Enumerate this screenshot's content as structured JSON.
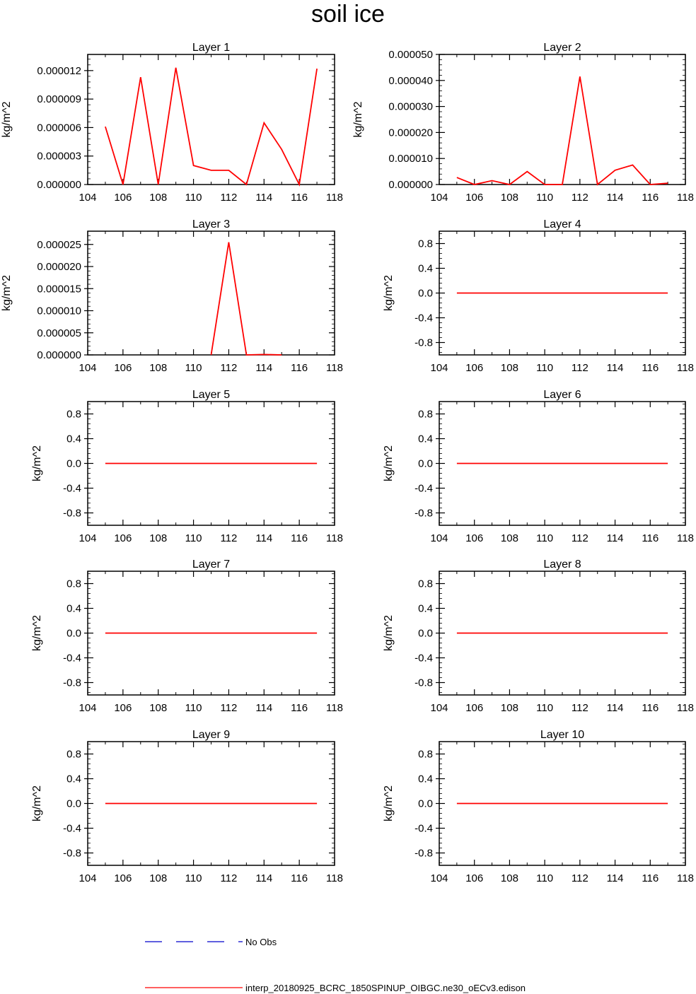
{
  "title": "soil ice",
  "colors": {
    "model_line": "#ff0000",
    "obs_line": "#0000cc",
    "frame": "#000000"
  },
  "legend": [
    {
      "label": "No Obs",
      "style": "dashed",
      "color": "#0000cc"
    },
    {
      "label": "interp_20180925_BCRC_1850SPINUP_OIBGC.ne30_oECv3.edison",
      "style": "solid",
      "color": "#ff0000"
    }
  ],
  "chart_data": [
    {
      "type": "line",
      "title": "Layer 1",
      "ylabel": "kg/m^2",
      "xlim": [
        104,
        118
      ],
      "ylim": [
        0,
        1.37e-05
      ],
      "xticks": [
        104,
        106,
        108,
        110,
        112,
        114,
        116,
        118
      ],
      "xtick_labels": [
        "104",
        "106",
        "108",
        "110",
        "112",
        "114",
        "116",
        "118"
      ],
      "yticks": [
        0,
        3e-06,
        6e-06,
        9e-06,
        1.2e-05
      ],
      "ytick_labels": [
        "0.000000",
        "0.000003",
        "0.000006",
        "0.000009",
        "0.000012"
      ],
      "series": [
        {
          "x": [
            105,
            106,
            107,
            108,
            109,
            110,
            111,
            112,
            113,
            114,
            115,
            116,
            117
          ],
          "values": [
            6.1e-06,
            0,
            1.13e-05,
            0,
            1.23e-05,
            2e-06,
            1.5e-06,
            1.5e-06,
            0,
            6.5e-06,
            3.7e-06,
            0,
            1.22e-05
          ]
        }
      ]
    },
    {
      "type": "line",
      "title": "Layer 2",
      "ylabel": "kg/m^2",
      "xlim": [
        104,
        118
      ],
      "ylim": [
        0,
        5e-05
      ],
      "xticks": [
        104,
        106,
        108,
        110,
        112,
        114,
        116,
        118
      ],
      "xtick_labels": [
        "104",
        "106",
        "108",
        "110",
        "112",
        "114",
        "116",
        "118"
      ],
      "yticks": [
        0,
        1e-05,
        2e-05,
        3e-05,
        4e-05,
        5e-05
      ],
      "ytick_labels": [
        "0.000000",
        "0.000010",
        "0.000020",
        "0.000030",
        "0.000040",
        "0.000050"
      ],
      "series": [
        {
          "x": [
            105,
            106,
            107,
            108,
            109,
            110,
            111,
            112,
            113,
            114,
            115,
            116,
            117
          ],
          "values": [
            2.7e-06,
            0,
            1.5e-06,
            0,
            5e-06,
            0,
            0,
            4.15e-05,
            0,
            5.5e-06,
            7.5e-06,
            0,
            5e-07
          ]
        }
      ]
    },
    {
      "type": "line",
      "title": "Layer 3",
      "ylabel": "kg/m^2",
      "xlim": [
        104,
        118
      ],
      "ylim": [
        0,
        2.8e-05
      ],
      "xticks": [
        104,
        106,
        108,
        110,
        112,
        114,
        116,
        118
      ],
      "xtick_labels": [
        "104",
        "106",
        "108",
        "110",
        "112",
        "114",
        "116",
        "118"
      ],
      "yticks": [
        0,
        5e-06,
        1e-05,
        1.5e-05,
        2e-05,
        2.5e-05
      ],
      "ytick_labels": [
        "0.000000",
        "0.000005",
        "0.000010",
        "0.000015",
        "0.000020",
        "0.000025"
      ],
      "series": [
        {
          "x": [
            111,
            112,
            113,
            114,
            115
          ],
          "values": [
            0,
            2.55e-05,
            0,
            1e-07,
            0
          ]
        }
      ]
    },
    {
      "type": "line",
      "title": "Layer 4",
      "ylabel": "kg/m^2",
      "xlim": [
        104,
        118
      ],
      "ylim": [
        -1,
        1
      ],
      "xticks": [
        104,
        106,
        108,
        110,
        112,
        114,
        116,
        118
      ],
      "xtick_labels": [
        "104",
        "106",
        "108",
        "110",
        "112",
        "114",
        "116",
        "118"
      ],
      "yticks": [
        -0.8,
        -0.4,
        0,
        0.4,
        0.8
      ],
      "ytick_labels": [
        "-0.8",
        "-0.4",
        "0.0",
        "0.4",
        "0.8"
      ],
      "series": [
        {
          "x": [
            105,
            117
          ],
          "values": [
            0,
            0
          ]
        }
      ]
    },
    {
      "type": "line",
      "title": "Layer 5",
      "ylabel": "kg/m^2",
      "xlim": [
        104,
        118
      ],
      "ylim": [
        -1,
        1
      ],
      "xticks": [
        104,
        106,
        108,
        110,
        112,
        114,
        116,
        118
      ],
      "xtick_labels": [
        "104",
        "106",
        "108",
        "110",
        "112",
        "114",
        "116",
        "118"
      ],
      "yticks": [
        -0.8,
        -0.4,
        0,
        0.4,
        0.8
      ],
      "ytick_labels": [
        "-0.8",
        "-0.4",
        "0.0",
        "0.4",
        "0.8"
      ],
      "series": [
        {
          "x": [
            105,
            117
          ],
          "values": [
            0,
            0
          ]
        }
      ]
    },
    {
      "type": "line",
      "title": "Layer 6",
      "ylabel": "kg/m^2",
      "xlim": [
        104,
        118
      ],
      "ylim": [
        -1,
        1
      ],
      "xticks": [
        104,
        106,
        108,
        110,
        112,
        114,
        116,
        118
      ],
      "xtick_labels": [
        "104",
        "106",
        "108",
        "110",
        "112",
        "114",
        "116",
        "118"
      ],
      "yticks": [
        -0.8,
        -0.4,
        0,
        0.4,
        0.8
      ],
      "ytick_labels": [
        "-0.8",
        "-0.4",
        "0.0",
        "0.4",
        "0.8"
      ],
      "series": [
        {
          "x": [
            105,
            117
          ],
          "values": [
            0,
            0
          ]
        }
      ]
    },
    {
      "type": "line",
      "title": "Layer 7",
      "ylabel": "kg/m^2",
      "xlim": [
        104,
        118
      ],
      "ylim": [
        -1,
        1
      ],
      "xticks": [
        104,
        106,
        108,
        110,
        112,
        114,
        116,
        118
      ],
      "xtick_labels": [
        "104",
        "106",
        "108",
        "110",
        "112",
        "114",
        "116",
        "118"
      ],
      "yticks": [
        -0.8,
        -0.4,
        0,
        0.4,
        0.8
      ],
      "ytick_labels": [
        "-0.8",
        "-0.4",
        "0.0",
        "0.4",
        "0.8"
      ],
      "series": [
        {
          "x": [
            105,
            117
          ],
          "values": [
            0,
            0
          ]
        }
      ]
    },
    {
      "type": "line",
      "title": "Layer 8",
      "ylabel": "kg/m^2",
      "xlim": [
        104,
        118
      ],
      "ylim": [
        -1,
        1
      ],
      "xticks": [
        104,
        106,
        108,
        110,
        112,
        114,
        116,
        118
      ],
      "xtick_labels": [
        "104",
        "106",
        "108",
        "110",
        "112",
        "114",
        "116",
        "118"
      ],
      "yticks": [
        -0.8,
        -0.4,
        0,
        0.4,
        0.8
      ],
      "ytick_labels": [
        "-0.8",
        "-0.4",
        "0.0",
        "0.4",
        "0.8"
      ],
      "series": [
        {
          "x": [
            105,
            117
          ],
          "values": [
            0,
            0
          ]
        }
      ]
    },
    {
      "type": "line",
      "title": "Layer 9",
      "ylabel": "kg/m^2",
      "xlim": [
        104,
        118
      ],
      "ylim": [
        -1,
        1
      ],
      "xticks": [
        104,
        106,
        108,
        110,
        112,
        114,
        116,
        118
      ],
      "xtick_labels": [
        "104",
        "106",
        "108",
        "110",
        "112",
        "114",
        "116",
        "118"
      ],
      "yticks": [
        -0.8,
        -0.4,
        0,
        0.4,
        0.8
      ],
      "ytick_labels": [
        "-0.8",
        "-0.4",
        "0.0",
        "0.4",
        "0.8"
      ],
      "series": [
        {
          "x": [
            105,
            117
          ],
          "values": [
            0,
            0
          ]
        }
      ]
    },
    {
      "type": "line",
      "title": "Layer 10",
      "ylabel": "kg/m^2",
      "xlim": [
        104,
        118
      ],
      "ylim": [
        -1,
        1
      ],
      "xticks": [
        104,
        106,
        108,
        110,
        112,
        114,
        116,
        118
      ],
      "xtick_labels": [
        "104",
        "106",
        "108",
        "110",
        "112",
        "114",
        "116",
        "118"
      ],
      "yticks": [
        -0.8,
        -0.4,
        0,
        0.4,
        0.8
      ],
      "ytick_labels": [
        "-0.8",
        "-0.4",
        "0.0",
        "0.4",
        "0.8"
      ],
      "series": [
        {
          "x": [
            105,
            117
          ],
          "values": [
            0,
            0
          ]
        }
      ]
    }
  ]
}
